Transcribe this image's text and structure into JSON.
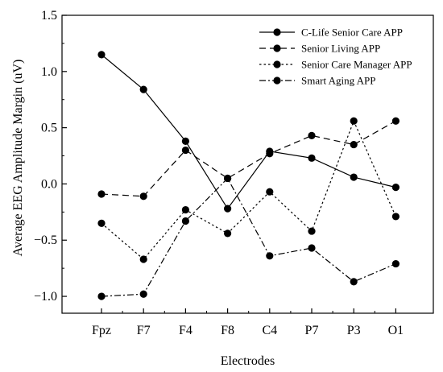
{
  "chart_data": {
    "type": "line",
    "xlabel": "Electrodes",
    "ylabel": "Average EEG Amplitude Margin (uV)",
    "categories": [
      "Fpz",
      "F7",
      "F4",
      "F8",
      "C4",
      "P7",
      "P3",
      "O1"
    ],
    "ylim": [
      -1.15,
      1.5
    ],
    "yticks": [
      -1.0,
      -0.5,
      0.0,
      0.5,
      1.0,
      1.5
    ],
    "ytick_labels": [
      "-1.0",
      "-0.5",
      "0.0",
      "0.5",
      "1.0",
      "1.5"
    ],
    "grid": false,
    "legend": "top-right",
    "series": [
      {
        "name": "C-Life Senior Care APP",
        "dash": "solid",
        "values": [
          1.15,
          0.84,
          0.38,
          -0.22,
          0.29,
          0.23,
          0.06,
          -0.03
        ]
      },
      {
        "name": "Senior Living APP",
        "dash": "dashed",
        "values": [
          -0.09,
          -0.11,
          0.3,
          0.05,
          0.27,
          0.43,
          0.35,
          0.56
        ]
      },
      {
        "name": "Senior Care Manager APP",
        "dash": "dotted",
        "values": [
          -0.35,
          -0.67,
          -0.23,
          -0.44,
          -0.07,
          -0.42,
          0.56,
          -0.29
        ]
      },
      {
        "name": "Smart Aging APP",
        "dash": "dashdot",
        "values": [
          -1.0,
          -0.98,
          -0.33,
          0.05,
          -0.64,
          -0.57,
          -0.87,
          -0.71
        ]
      }
    ]
  }
}
